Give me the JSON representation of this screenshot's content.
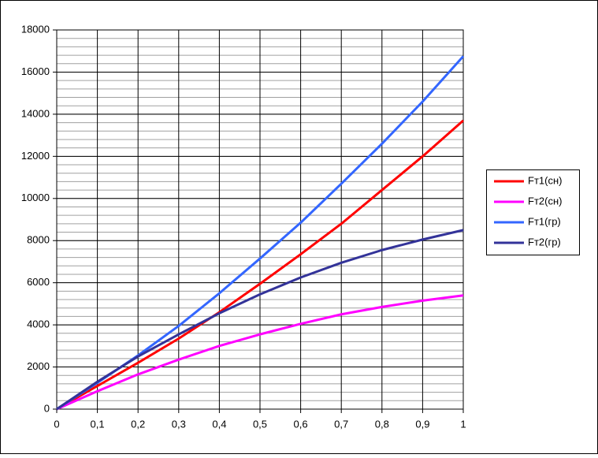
{
  "chart_data": {
    "type": "line",
    "x": [
      0,
      0.1,
      0.2,
      0.3,
      0.4,
      0.5,
      0.6,
      0.7,
      0.8,
      0.9,
      1
    ],
    "xlim": [
      0,
      1
    ],
    "xticks": [
      0,
      {
        "value": 0.1,
        "label": "0,1"
      },
      {
        "value": 0.2,
        "label": "0,2"
      },
      {
        "value": 0.3,
        "label": "0,3"
      },
      {
        "value": 0.4,
        "label": "0,4"
      },
      {
        "value": 0.5,
        "label": "0,5"
      },
      {
        "value": 0.6,
        "label": "0,6"
      },
      {
        "value": 0.7,
        "label": "0,7"
      },
      {
        "value": 0.8,
        "label": "0,8"
      },
      {
        "value": 0.9,
        "label": "0,9"
      },
      1
    ],
    "ylim": [
      0,
      18000
    ],
    "yticks": [
      0,
      2000,
      4000,
      6000,
      8000,
      10000,
      12000,
      14000,
      16000,
      18000
    ],
    "minor_grid_step": 400,
    "grid": true,
    "legend": "right",
    "series": [
      {
        "name": "Fт1(сн)",
        "color": "#ff0000",
        "values": [
          0,
          1100,
          2200,
          3350,
          4600,
          5950,
          7350,
          8800,
          10400,
          12000,
          13700
        ]
      },
      {
        "name": "Fт2(сн)",
        "color": "#ff00ff",
        "values": [
          0,
          850,
          1650,
          2350,
          3000,
          3550,
          4050,
          4500,
          4850,
          5150,
          5400
        ]
      },
      {
        "name": "Fт1(гр)",
        "color": "#3366ff",
        "values": [
          0,
          1250,
          2550,
          3950,
          5500,
          7150,
          8850,
          10700,
          12600,
          14600,
          16750
        ]
      },
      {
        "name": "Fт2(гр)",
        "color": "#333399",
        "values": [
          0,
          1300,
          2500,
          3550,
          4550,
          5450,
          6250,
          6950,
          7550,
          8050,
          8500
        ]
      }
    ]
  }
}
